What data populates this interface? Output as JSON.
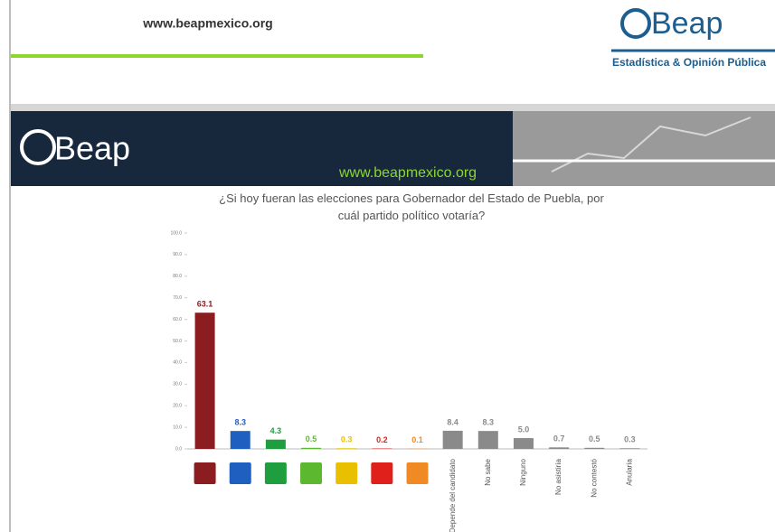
{
  "header": {
    "url": "www.beapmexico.org",
    "logo": "Beap",
    "tagline": "Estadística & Opinión Pública"
  },
  "banner": {
    "logo": "Beap",
    "url": "www.beapmexico.org"
  },
  "chart_data": {
    "type": "bar",
    "title": "¿Si hoy fueran las elecciones para Gobernador del Estado de Puebla, por cuál partido político votaría?",
    "categories": [
      null,
      null,
      null,
      null,
      null,
      null,
      null,
      "Depende del candidato",
      "No sabe",
      "Ninguno",
      "No asistiría",
      "No contestó",
      "Anularía"
    ],
    "values": [
      63.1,
      8.3,
      4.3,
      0.5,
      0.3,
      0.2,
      0.1,
      8.4,
      8.3,
      5.0,
      0.7,
      0.5,
      0.3
    ],
    "value_labels": [
      "63.1",
      "8.3",
      "4.3",
      "0.5",
      "0.3",
      "0.2",
      "0.1",
      "8.4",
      "8.3",
      "5.0",
      "0.7",
      "0.5",
      "0.3"
    ],
    "colors": [
      "#8b1c1f",
      "#1f5fbf",
      "#1e9e3e",
      "#5cb82e",
      "#e8c000",
      "#e0201b",
      "#f08a24",
      "#8a8a8a",
      "#8a8a8a",
      "#8a8a8a",
      "#8a8a8a",
      "#8a8a8a",
      "#8a8a8a"
    ],
    "ylim": [
      0,
      100
    ],
    "yticks": [
      {
        "value": 0,
        "label": "0.0"
      },
      {
        "value": 10,
        "label": "10.0"
      },
      {
        "value": 20,
        "label": "20.0"
      },
      {
        "value": 30,
        "label": "30.0"
      },
      {
        "value": 40,
        "label": "40.0"
      },
      {
        "value": 50,
        "label": "50.0"
      },
      {
        "value": 60,
        "label": "60.0"
      },
      {
        "value": 70,
        "label": "70.0"
      },
      {
        "value": 80,
        "label": "80.0"
      },
      {
        "value": 90,
        "label": "90.0"
      },
      {
        "value": 100,
        "label": "100.0"
      }
    ]
  }
}
